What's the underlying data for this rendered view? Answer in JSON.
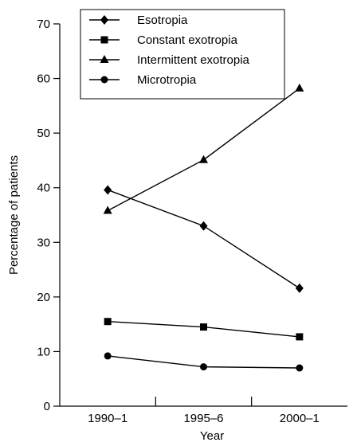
{
  "chart_data": {
    "type": "line",
    "title": "",
    "xlabel": "Year",
    "ylabel": "Percentage of patients",
    "categories": [
      "1990–1",
      "1995–6",
      "2000–1"
    ],
    "ylim": [
      0,
      70
    ],
    "yticks": [
      0,
      10,
      20,
      30,
      40,
      50,
      60,
      70
    ],
    "grid": false,
    "legend_position": "top-left",
    "series": [
      {
        "name": "Esotropia",
        "marker": "diamond",
        "values": [
          39.6,
          33.0,
          21.6
        ]
      },
      {
        "name": "Constant exotropia",
        "marker": "square",
        "values": [
          15.5,
          14.5,
          12.7
        ]
      },
      {
        "name": "Intermittent exotropia",
        "marker": "triangle",
        "values": [
          35.8,
          45.1,
          58.2
        ]
      },
      {
        "name": "Microtropia",
        "marker": "circle",
        "values": [
          9.2,
          7.2,
          7.0
        ]
      }
    ],
    "colors": {
      "line": "#000000",
      "background": "#ffffff"
    }
  }
}
